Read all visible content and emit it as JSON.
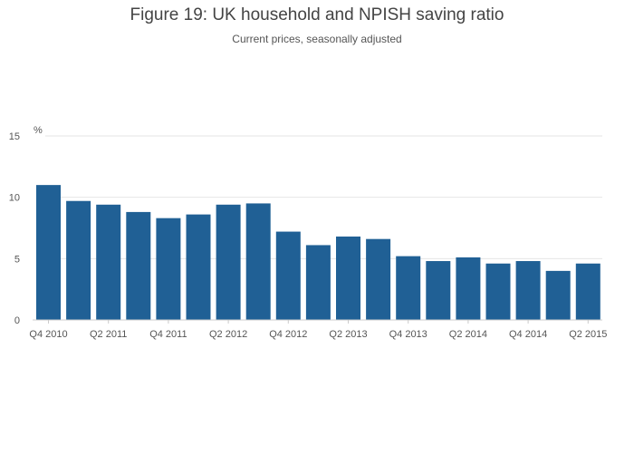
{
  "chart_data": {
    "type": "bar",
    "title": "Figure 19: UK household and NPISH saving ratio",
    "subtitle": "Current prices, seasonally adjusted",
    "ylabel": "%",
    "xlabel": "",
    "ylim": [
      0,
      15
    ],
    "yticks": [
      0,
      5,
      10,
      15
    ],
    "grid": true,
    "bar_color": "#206095",
    "categories": [
      "Q4 2010",
      "Q1 2011",
      "Q2 2011",
      "Q3 2011",
      "Q4 2011",
      "Q1 2012",
      "Q2 2012",
      "Q3 2012",
      "Q4 2012",
      "Q1 2013",
      "Q2 2013",
      "Q3 2013",
      "Q4 2013",
      "Q1 2014",
      "Q2 2014",
      "Q3 2014",
      "Q4 2014",
      "Q1 2015",
      "Q2 2015"
    ],
    "tick_labels": [
      "Q4 2010",
      "Q2 2011",
      "Q4 2011",
      "Q2 2012",
      "Q4 2012",
      "Q2 2013",
      "Q4 2013",
      "Q2 2014",
      "Q4 2014",
      "Q2 2015"
    ],
    "values": [
      11.0,
      9.7,
      9.4,
      8.8,
      8.3,
      8.6,
      9.4,
      9.5,
      7.2,
      6.1,
      6.8,
      6.6,
      5.2,
      4.8,
      5.1,
      4.6,
      4.8,
      4.0,
      4.6
    ]
  }
}
